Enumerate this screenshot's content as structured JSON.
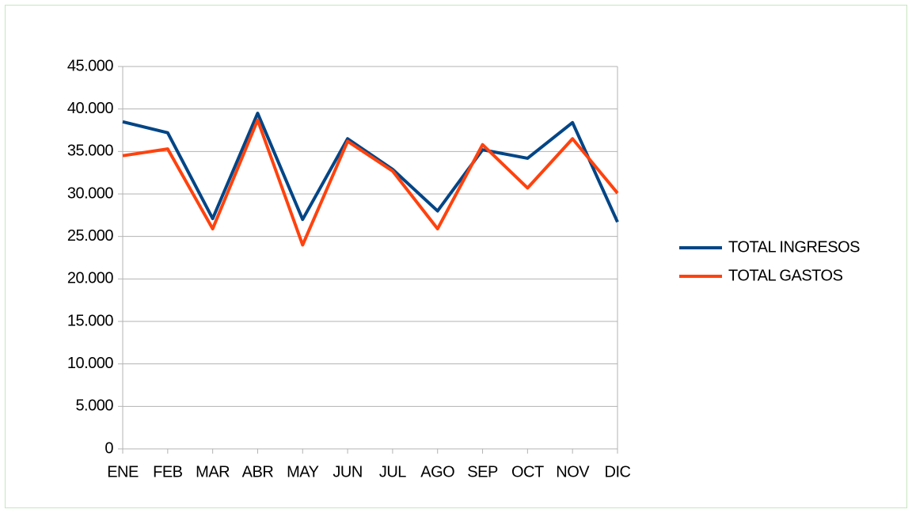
{
  "chart_data": {
    "type": "line",
    "categories": [
      "ENE",
      "FEB",
      "MAR",
      "ABR",
      "MAY",
      "JUN",
      "JUL",
      "AGO",
      "SEP",
      "OCT",
      "NOV",
      "DIC"
    ],
    "series": [
      {
        "name": "TOTAL INGRESOS",
        "color": "#004586",
        "values": [
          38500,
          37200,
          27100,
          39500,
          27000,
          36500,
          32900,
          28000,
          35200,
          34200,
          38400,
          26700
        ]
      },
      {
        "name": "TOTAL GASTOS",
        "color": "#ff420e",
        "values": [
          34500,
          35300,
          25900,
          38700,
          24000,
          36200,
          32700,
          25900,
          35800,
          30700,
          36500,
          30100
        ]
      }
    ],
    "ylim": [
      0,
      45000
    ],
    "yticks": [
      0,
      {
        "value": 5000,
        "label": "5.000"
      },
      {
        "value": 10000,
        "label": "10.000"
      },
      {
        "value": 15000,
        "label": "15.000"
      },
      {
        "value": 20000,
        "label": "20.000"
      },
      {
        "value": 25000,
        "label": "25.000"
      },
      {
        "value": 30000,
        "label": "30.000"
      },
      {
        "value": 35000,
        "label": "35.000"
      },
      {
        "value": 40000,
        "label": "40.000"
      },
      {
        "value": 45000,
        "label": "45.000"
      }
    ],
    "grid": true,
    "legend": "right"
  }
}
